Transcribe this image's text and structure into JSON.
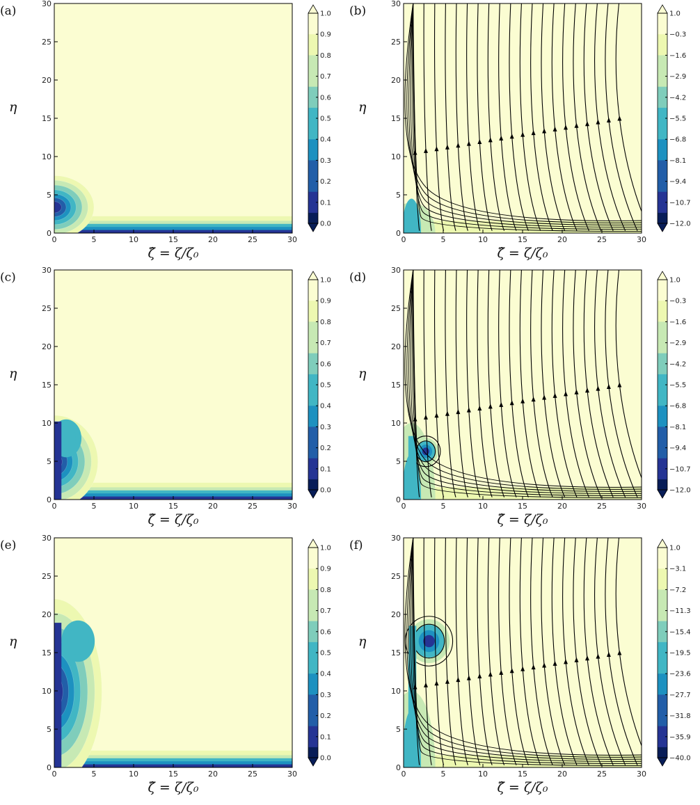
{
  "chart_data": [
    {
      "panel": "(a)",
      "type": "heatmap",
      "xlabel": "ζ̂ = ζ/ζ₀",
      "ylabel": "η",
      "xlim": [
        0,
        30
      ],
      "ylim": [
        0,
        30
      ],
      "xticks": [
        "0",
        "5",
        "10",
        "15",
        "20",
        "25",
        "30"
      ],
      "yticks": [
        "0",
        "5",
        "10",
        "15",
        "20",
        "25",
        "30"
      ],
      "colorbar": {
        "min": 0.0,
        "max": 1.0,
        "ticks": [
          "0.0",
          "0.1",
          "0.2",
          "0.3",
          "0.4",
          "0.5",
          "0.6",
          "0.7",
          "0.8",
          "0.9",
          "1.0"
        ]
      },
      "streamlines": false,
      "features": {
        "blob_height": 7.5,
        "blob_width": 5.0,
        "core_center": [
          0,
          0
        ],
        "floor_extent": 30
      }
    },
    {
      "panel": "(b)",
      "type": "heatmap",
      "xlabel": "ζ̂ = ζ/ζ₀",
      "ylabel": "η",
      "xlim": [
        0,
        30
      ],
      "ylim": [
        0,
        30
      ],
      "xticks": [
        "0",
        "5",
        "10",
        "15",
        "20",
        "25",
        "30"
      ],
      "yticks": [
        "0",
        "5",
        "10",
        "15",
        "20",
        "25",
        "30"
      ],
      "colorbar": {
        "min": -12.0,
        "max": 1.0,
        "ticks": [
          "1.0",
          "−0.3",
          "−1.6",
          "−2.9",
          "−4.2",
          "−5.5",
          "−6.8",
          "−8.1",
          "−9.4",
          "−10.7",
          "−12.0"
        ]
      },
      "streamlines": true,
      "vortex": null,
      "features": {
        "source_x": 1.0,
        "low_region": [
          1.2,
          1.5
        ]
      }
    },
    {
      "panel": "(c)",
      "type": "heatmap",
      "xlabel": "ζ̂ = ζ/ζ₀",
      "ylabel": "η",
      "xlim": [
        0,
        30
      ],
      "ylim": [
        0,
        30
      ],
      "xticks": [
        "0",
        "5",
        "10",
        "15",
        "20",
        "25",
        "30"
      ],
      "yticks": [
        "0",
        "5",
        "10",
        "15",
        "20",
        "25",
        "30"
      ],
      "colorbar": {
        "min": 0.0,
        "max": 1.0,
        "ticks": [
          "0.0",
          "0.1",
          "0.2",
          "0.3",
          "0.4",
          "0.5",
          "0.6",
          "0.7",
          "0.8",
          "0.9",
          "1.0"
        ]
      },
      "streamlines": false,
      "features": {
        "blob_height": 11.0,
        "blob_width": 5.5,
        "core_center": [
          1.5,
          8.0
        ],
        "floor_extent": 30
      }
    },
    {
      "panel": "(d)",
      "type": "heatmap",
      "xlabel": "ζ̂ = ζ/ζ₀",
      "ylabel": "η",
      "xlim": [
        0,
        30
      ],
      "ylim": [
        0,
        30
      ],
      "xticks": [
        "0",
        "5",
        "10",
        "15",
        "20",
        "25",
        "30"
      ],
      "yticks": [
        "0",
        "5",
        "10",
        "15",
        "20",
        "25",
        "30"
      ],
      "colorbar": {
        "min": -12.0,
        "max": 1.0,
        "ticks": [
          "1.0",
          "−0.3",
          "−1.6",
          "−2.9",
          "−4.2",
          "−5.5",
          "−6.8",
          "−8.1",
          "−9.4",
          "−10.7",
          "−12.0"
        ]
      },
      "streamlines": true,
      "vortex": {
        "center": [
          2.8,
          6.3
        ],
        "radius": 1.6
      },
      "features": {
        "source_x": 1.0,
        "low_region": [
          1.2,
          2.0
        ]
      }
    },
    {
      "panel": "(e)",
      "type": "heatmap",
      "xlabel": "ζ̂ = ζ/ζ₀",
      "ylabel": "η",
      "xlim": [
        0,
        30
      ],
      "ylim": [
        0,
        30
      ],
      "xticks": [
        "0",
        "5",
        "10",
        "15",
        "20",
        "25",
        "30"
      ],
      "yticks": [
        "0",
        "5",
        "10",
        "15",
        "20",
        "25",
        "30"
      ],
      "colorbar": {
        "min": 0.0,
        "max": 1.0,
        "ticks": [
          "0.0",
          "0.1",
          "0.2",
          "0.3",
          "0.4",
          "0.5",
          "0.6",
          "0.7",
          "0.8",
          "0.9",
          "1.0"
        ]
      },
      "streamlines": false,
      "features": {
        "blob_height": 22.0,
        "blob_width": 6.0,
        "core_center": [
          3.0,
          16.5
        ],
        "floor_extent": 30
      }
    },
    {
      "panel": "(f)",
      "type": "heatmap",
      "xlabel": "ζ̂ = ζ/ζ₀",
      "ylabel": "η",
      "xlim": [
        0,
        30
      ],
      "ylim": [
        0,
        30
      ],
      "xticks": [
        "0",
        "5",
        "10",
        "15",
        "20",
        "25",
        "30"
      ],
      "yticks": [
        "0",
        "5",
        "10",
        "15",
        "20",
        "25",
        "30"
      ],
      "colorbar": {
        "min": -40.0,
        "max": 1.0,
        "ticks": [
          "1.0",
          "−3.1",
          "−7.2",
          "−11.3",
          "−15.4",
          "−19.5",
          "−23.6",
          "−27.7",
          "−31.8",
          "−35.9",
          "−40.0"
        ]
      },
      "streamlines": true,
      "vortex": {
        "center": [
          3.2,
          16.5
        ],
        "radius": 2.6
      },
      "features": {
        "source_x": 1.0,
        "low_region": [
          1.2,
          2.5
        ]
      }
    }
  ],
  "colors": {
    "background": "#fbfdd2",
    "colormap": [
      "#081d58",
      "#253494",
      "#225ea8",
      "#1d91c0",
      "#41b6c4",
      "#7fcdbb",
      "#c7e9b4",
      "#edf8b1",
      "#fbfdd2"
    ],
    "streamline": "#000000"
  }
}
